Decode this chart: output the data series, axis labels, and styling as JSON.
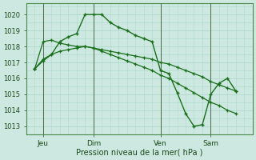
{
  "background_color": "#cce8e0",
  "grid_color": "#b0d8cc",
  "line_color": "#1a6e1a",
  "xlabel": "Pression niveau de la mer( hPa )",
  "ylim": [
    1012.5,
    1020.7
  ],
  "yticks": [
    1013,
    1014,
    1015,
    1016,
    1017,
    1018,
    1019,
    1020
  ],
  "xtick_labels": [
    "Jeu",
    "Dim",
    "Ven",
    "Sam"
  ],
  "xtick_positions": [
    1,
    4,
    8,
    11
  ],
  "vline_positions": [
    1,
    4,
    8,
    11
  ],
  "xlim": [
    0,
    13.5
  ],
  "series1_x": [
    0.5,
    1.0,
    1.5,
    2.0,
    2.5,
    3.0,
    3.5,
    4.0,
    4.5,
    5.0,
    5.5,
    6.0,
    6.5,
    7.0,
    7.5,
    8.0,
    8.5,
    9.0,
    9.5,
    10.0,
    10.5,
    11.0,
    11.5,
    12.0,
    12.5
  ],
  "series1_y": [
    1016.6,
    1017.1,
    1017.5,
    1018.3,
    1018.6,
    1018.8,
    1020.0,
    1020.0,
    1020.0,
    1019.5,
    1019.2,
    1019.0,
    1018.7,
    1018.5,
    1018.3,
    1016.5,
    1016.3,
    1015.1,
    1013.8,
    1013.0,
    1013.1,
    1015.0,
    1015.7,
    1016.0,
    1015.2
  ],
  "series2_x": [
    0.5,
    1.0,
    1.5,
    2.0,
    2.5,
    3.0,
    3.5,
    4.0,
    4.5,
    5.0,
    5.5,
    6.0,
    6.5,
    7.0,
    7.5,
    8.0,
    8.5,
    9.0,
    9.5,
    10.0,
    10.5,
    11.0,
    11.5,
    12.0,
    12.5
  ],
  "series2_y": [
    1016.6,
    1018.3,
    1018.4,
    1018.2,
    1018.1,
    1018.0,
    1018.0,
    1017.9,
    1017.8,
    1017.7,
    1017.6,
    1017.5,
    1017.4,
    1017.3,
    1017.2,
    1017.0,
    1016.9,
    1016.7,
    1016.5,
    1016.3,
    1016.1,
    1015.8,
    1015.6,
    1015.4,
    1015.2
  ],
  "series3_x": [
    0.5,
    1.0,
    1.5,
    2.0,
    2.5,
    3.0,
    3.5,
    4.0,
    4.5,
    5.0,
    5.5,
    6.0,
    6.5,
    7.0,
    7.5,
    8.0,
    8.5,
    9.0,
    9.5,
    10.0,
    10.5,
    11.0,
    11.5,
    12.0,
    12.5
  ],
  "series3_y": [
    1016.6,
    1017.2,
    1017.5,
    1017.7,
    1017.8,
    1017.9,
    1018.0,
    1017.9,
    1017.7,
    1017.5,
    1017.3,
    1017.1,
    1016.9,
    1016.7,
    1016.5,
    1016.2,
    1016.0,
    1015.7,
    1015.4,
    1015.1,
    1014.8,
    1014.5,
    1014.3,
    1014.0,
    1013.8
  ]
}
